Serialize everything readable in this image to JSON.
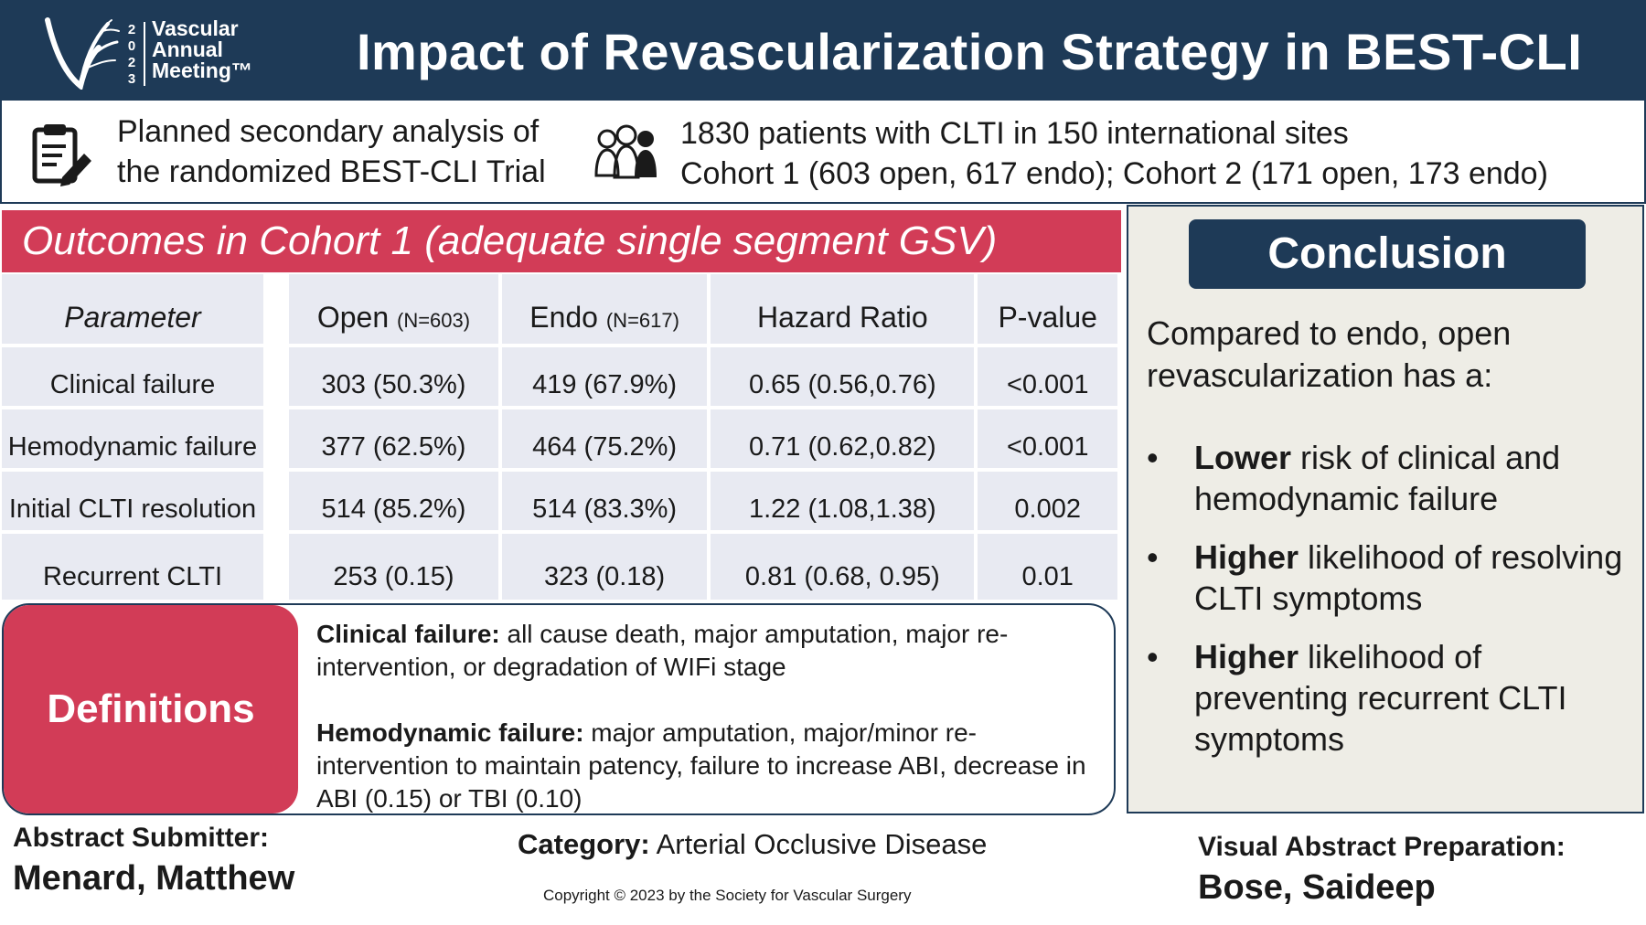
{
  "header": {
    "logo": {
      "year_digits": [
        "2",
        "0",
        "2",
        "3"
      ],
      "lines": [
        "Vascular",
        "Annual",
        "Meeting™"
      ]
    },
    "title": "Impact of Revascularization Strategy in BEST-CLI"
  },
  "info": {
    "left_icon": "clipboard-pencil-icon",
    "left_lines": [
      "Planned secondary analysis of",
      "the randomized BEST-CLI Trial"
    ],
    "right_icon": "people-group-icon",
    "right_lines": [
      "1830 patients with CLTI in 150 international sites",
      "Cohort 1 (603 open, 617 endo); Cohort 2 (171 open, 173 endo)"
    ]
  },
  "outcomes": {
    "title": "Outcomes in Cohort 1 (adequate single segment GSV)",
    "headers": {
      "parameter": "Parameter",
      "open": "Open",
      "open_n": "(N=603)",
      "endo": "Endo",
      "endo_n": "(N=617)",
      "hr": "Hazard Ratio",
      "p": "P-value"
    },
    "rows": [
      {
        "parameter": "Clinical failure",
        "open": "303 (50.3%)",
        "endo": "419 (67.9%)",
        "hr": "0.65 (0.56,0.76)",
        "p": "<0.001"
      },
      {
        "parameter": "Hemodynamic failure",
        "open": "377 (62.5%)",
        "endo": "464 (75.2%)",
        "hr": "0.71 (0.62,0.82)",
        "p": "<0.001"
      },
      {
        "parameter": "Initial CLTI resolution",
        "open": "514 (85.2%)",
        "endo": "514 (83.3%)",
        "hr": "1.22 (1.08,1.38)",
        "p": "0.002"
      },
      {
        "parameter": "Recurrent CLTI",
        "open": "253 (0.15)",
        "endo": "323 (0.18)",
        "hr": "0.81 (0.68, 0.95)",
        "p": "0.01"
      }
    ]
  },
  "definitions": {
    "label": "Definitions",
    "items": [
      {
        "term": "Clinical failure:",
        "text": " all cause death, major amputation, major re-intervention, or degradation of WIFi stage"
      },
      {
        "term": "Hemodynamic failure:",
        "text": " major amputation, major/minor re-intervention to maintain patency, failure to increase ABI, decrease in ABI (0.15) or TBI (0.10)"
      }
    ]
  },
  "conclusion": {
    "title": "Conclusion",
    "intro": "Compared to endo, open revascularization has a:",
    "bullet_symbol": "•",
    "bullets": [
      {
        "bold": "Lower",
        "text": " risk of clinical and hemodynamic failure"
      },
      {
        "bold": "Higher",
        "text": " likelihood of resolving CLTI symptoms"
      },
      {
        "bold": "Higher",
        "text": " likelihood of preventing recurrent CLTI symptoms"
      }
    ]
  },
  "footer": {
    "submitter_label": "Abstract Submitter:",
    "submitter_name": "Menard, Matthew",
    "category_label": "Category:",
    "category_value": " Arterial Occlusive Disease",
    "copyright": "Copyright © 2023 by the Society for Vascular Surgery",
    "prep_label": "Visual Abstract Preparation:",
    "prep_name": "Bose, Saideep"
  },
  "colors": {
    "navy": "#1e3a57",
    "accent_red": "#d23c57",
    "table_cell": "#e8eaf2",
    "conclusion_bg": "#eeede6"
  }
}
